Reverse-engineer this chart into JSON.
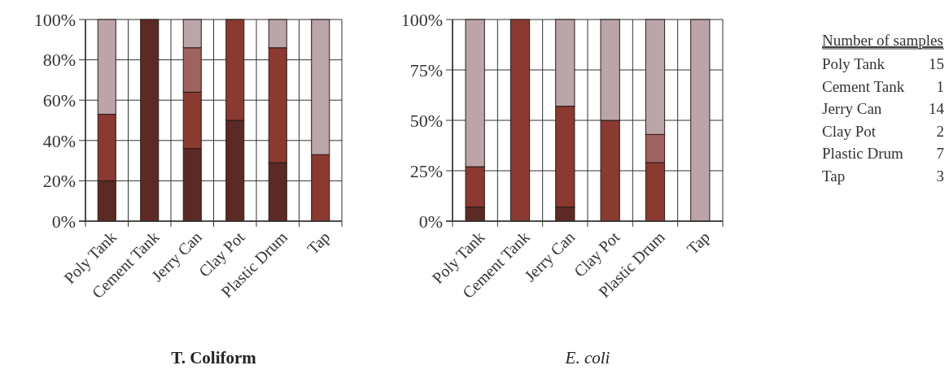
{
  "chart_data": [
    {
      "type": "bar",
      "title": "T. Coliform",
      "stacked": true,
      "grid": true,
      "categories": [
        "Poly Tank",
        "Cement Tank",
        "Jerry Can",
        "Clay Pot",
        "Plastic Drum",
        "Tap"
      ],
      "ylim": [
        0,
        100
      ],
      "yticks": [
        {
          "value": 0,
          "label": "0%"
        },
        {
          "value": 20,
          "label": "20%"
        },
        {
          "value": 40,
          "label": "40%"
        },
        {
          "value": 60,
          "label": "60%"
        },
        {
          "value": 80,
          "label": "80%"
        },
        {
          "value": 100,
          "label": "100%"
        }
      ],
      "series": [
        {
          "color": "#5c2a24",
          "values": [
            20,
            100,
            36,
            50,
            29,
            0
          ]
        },
        {
          "color": "#8a3a30",
          "values": [
            33,
            0,
            28,
            50,
            57,
            33
          ]
        },
        {
          "color": "#a0625e",
          "values": [
            0,
            0,
            22,
            0,
            0,
            0
          ]
        },
        {
          "color": "#bba5a8",
          "values": [
            47,
            0,
            14,
            0,
            14,
            67
          ]
        }
      ]
    },
    {
      "type": "bar",
      "title": "E. coli",
      "stacked": true,
      "grid": true,
      "categories": [
        "Poly Tank",
        "Cement Tank",
        "Jerry Can",
        "Clay Pot",
        "Plastic Drum",
        "Tap"
      ],
      "ylim": [
        0,
        100
      ],
      "yticks": [
        {
          "value": 0,
          "label": "0%"
        },
        {
          "value": 25,
          "label": "25%"
        },
        {
          "value": 50,
          "label": "50%"
        },
        {
          "value": 75,
          "label": "75%"
        },
        {
          "value": 100,
          "label": "100%"
        }
      ],
      "series": [
        {
          "color": "#5c2a24",
          "values": [
            7,
            0,
            7,
            0,
            0,
            0
          ]
        },
        {
          "color": "#8a3a30",
          "values": [
            20,
            100,
            50,
            50,
            29,
            0
          ]
        },
        {
          "color": "#a0625e",
          "values": [
            0,
            0,
            0,
            0,
            14,
            0
          ]
        },
        {
          "color": "#bba5a8",
          "values": [
            73,
            0,
            43,
            50,
            57,
            100
          ]
        }
      ]
    },
    {
      "type": "other",
      "title": "Number of samples",
      "data_labels": true,
      "categories": [
        "Poly Tank",
        "Cement Tank",
        "Jerry Can",
        "Clay Pot",
        "Plastic Drum",
        "Tap"
      ],
      "values": [
        15,
        1,
        14,
        2,
        7,
        3
      ]
    }
  ]
}
